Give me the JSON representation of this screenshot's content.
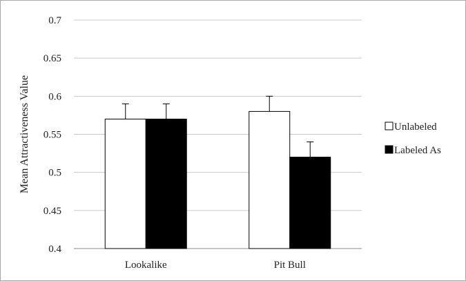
{
  "chart_data": {
    "type": "bar",
    "ylabel": "Mean Attractiveness Value",
    "xlabel": "",
    "ylim": [
      0.4,
      0.7
    ],
    "yticks": [
      "0.4",
      "0.45",
      "0.5",
      "0.55",
      "0.6",
      "0.65",
      "0.7"
    ],
    "grid": true,
    "legend_position": "right",
    "categories": [
      "Lookalike",
      "Pit Bull"
    ],
    "series": [
      {
        "name": "Unlabeled",
        "values": [
          0.57,
          0.58
        ],
        "errors": [
          0.02,
          0.02
        ],
        "fill": "#ffffff"
      },
      {
        "name": "Labeled As",
        "values": [
          0.57,
          0.52
        ],
        "errors": [
          0.02,
          0.02
        ],
        "fill": "#000000"
      }
    ]
  }
}
